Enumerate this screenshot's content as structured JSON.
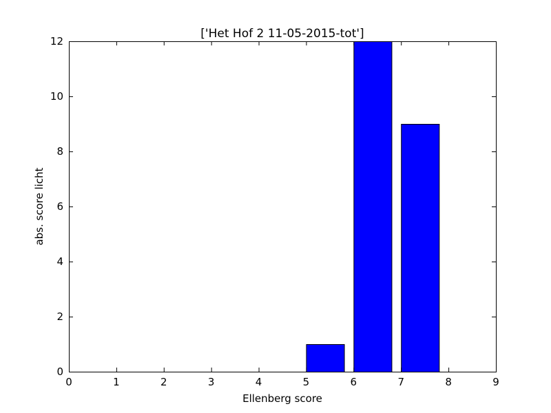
{
  "chart_data": {
    "type": "bar",
    "title": "['Het Hof 2 11-05-2015-tot']",
    "xlabel": "Ellenberg score",
    "ylabel": "abs. score licht",
    "xlim": [
      0,
      9
    ],
    "ylim": [
      0,
      12
    ],
    "x_ticks": [
      0,
      1,
      2,
      3,
      4,
      5,
      6,
      7,
      8,
      9
    ],
    "y_ticks": [
      0,
      2,
      4,
      6,
      8,
      10,
      12
    ],
    "bar_width": 0.8,
    "bars": [
      {
        "x": 0,
        "value": 0
      },
      {
        "x": 1,
        "value": 0
      },
      {
        "x": 2,
        "value": 0
      },
      {
        "x": 3,
        "value": 0
      },
      {
        "x": 4,
        "value": 0
      },
      {
        "x": 5,
        "value": 1
      },
      {
        "x": 6,
        "value": 12
      },
      {
        "x": 7,
        "value": 9
      },
      {
        "x": 8,
        "value": 0
      }
    ],
    "bar_color": "#0000ff",
    "edge_color": "#000000",
    "grid": false
  }
}
